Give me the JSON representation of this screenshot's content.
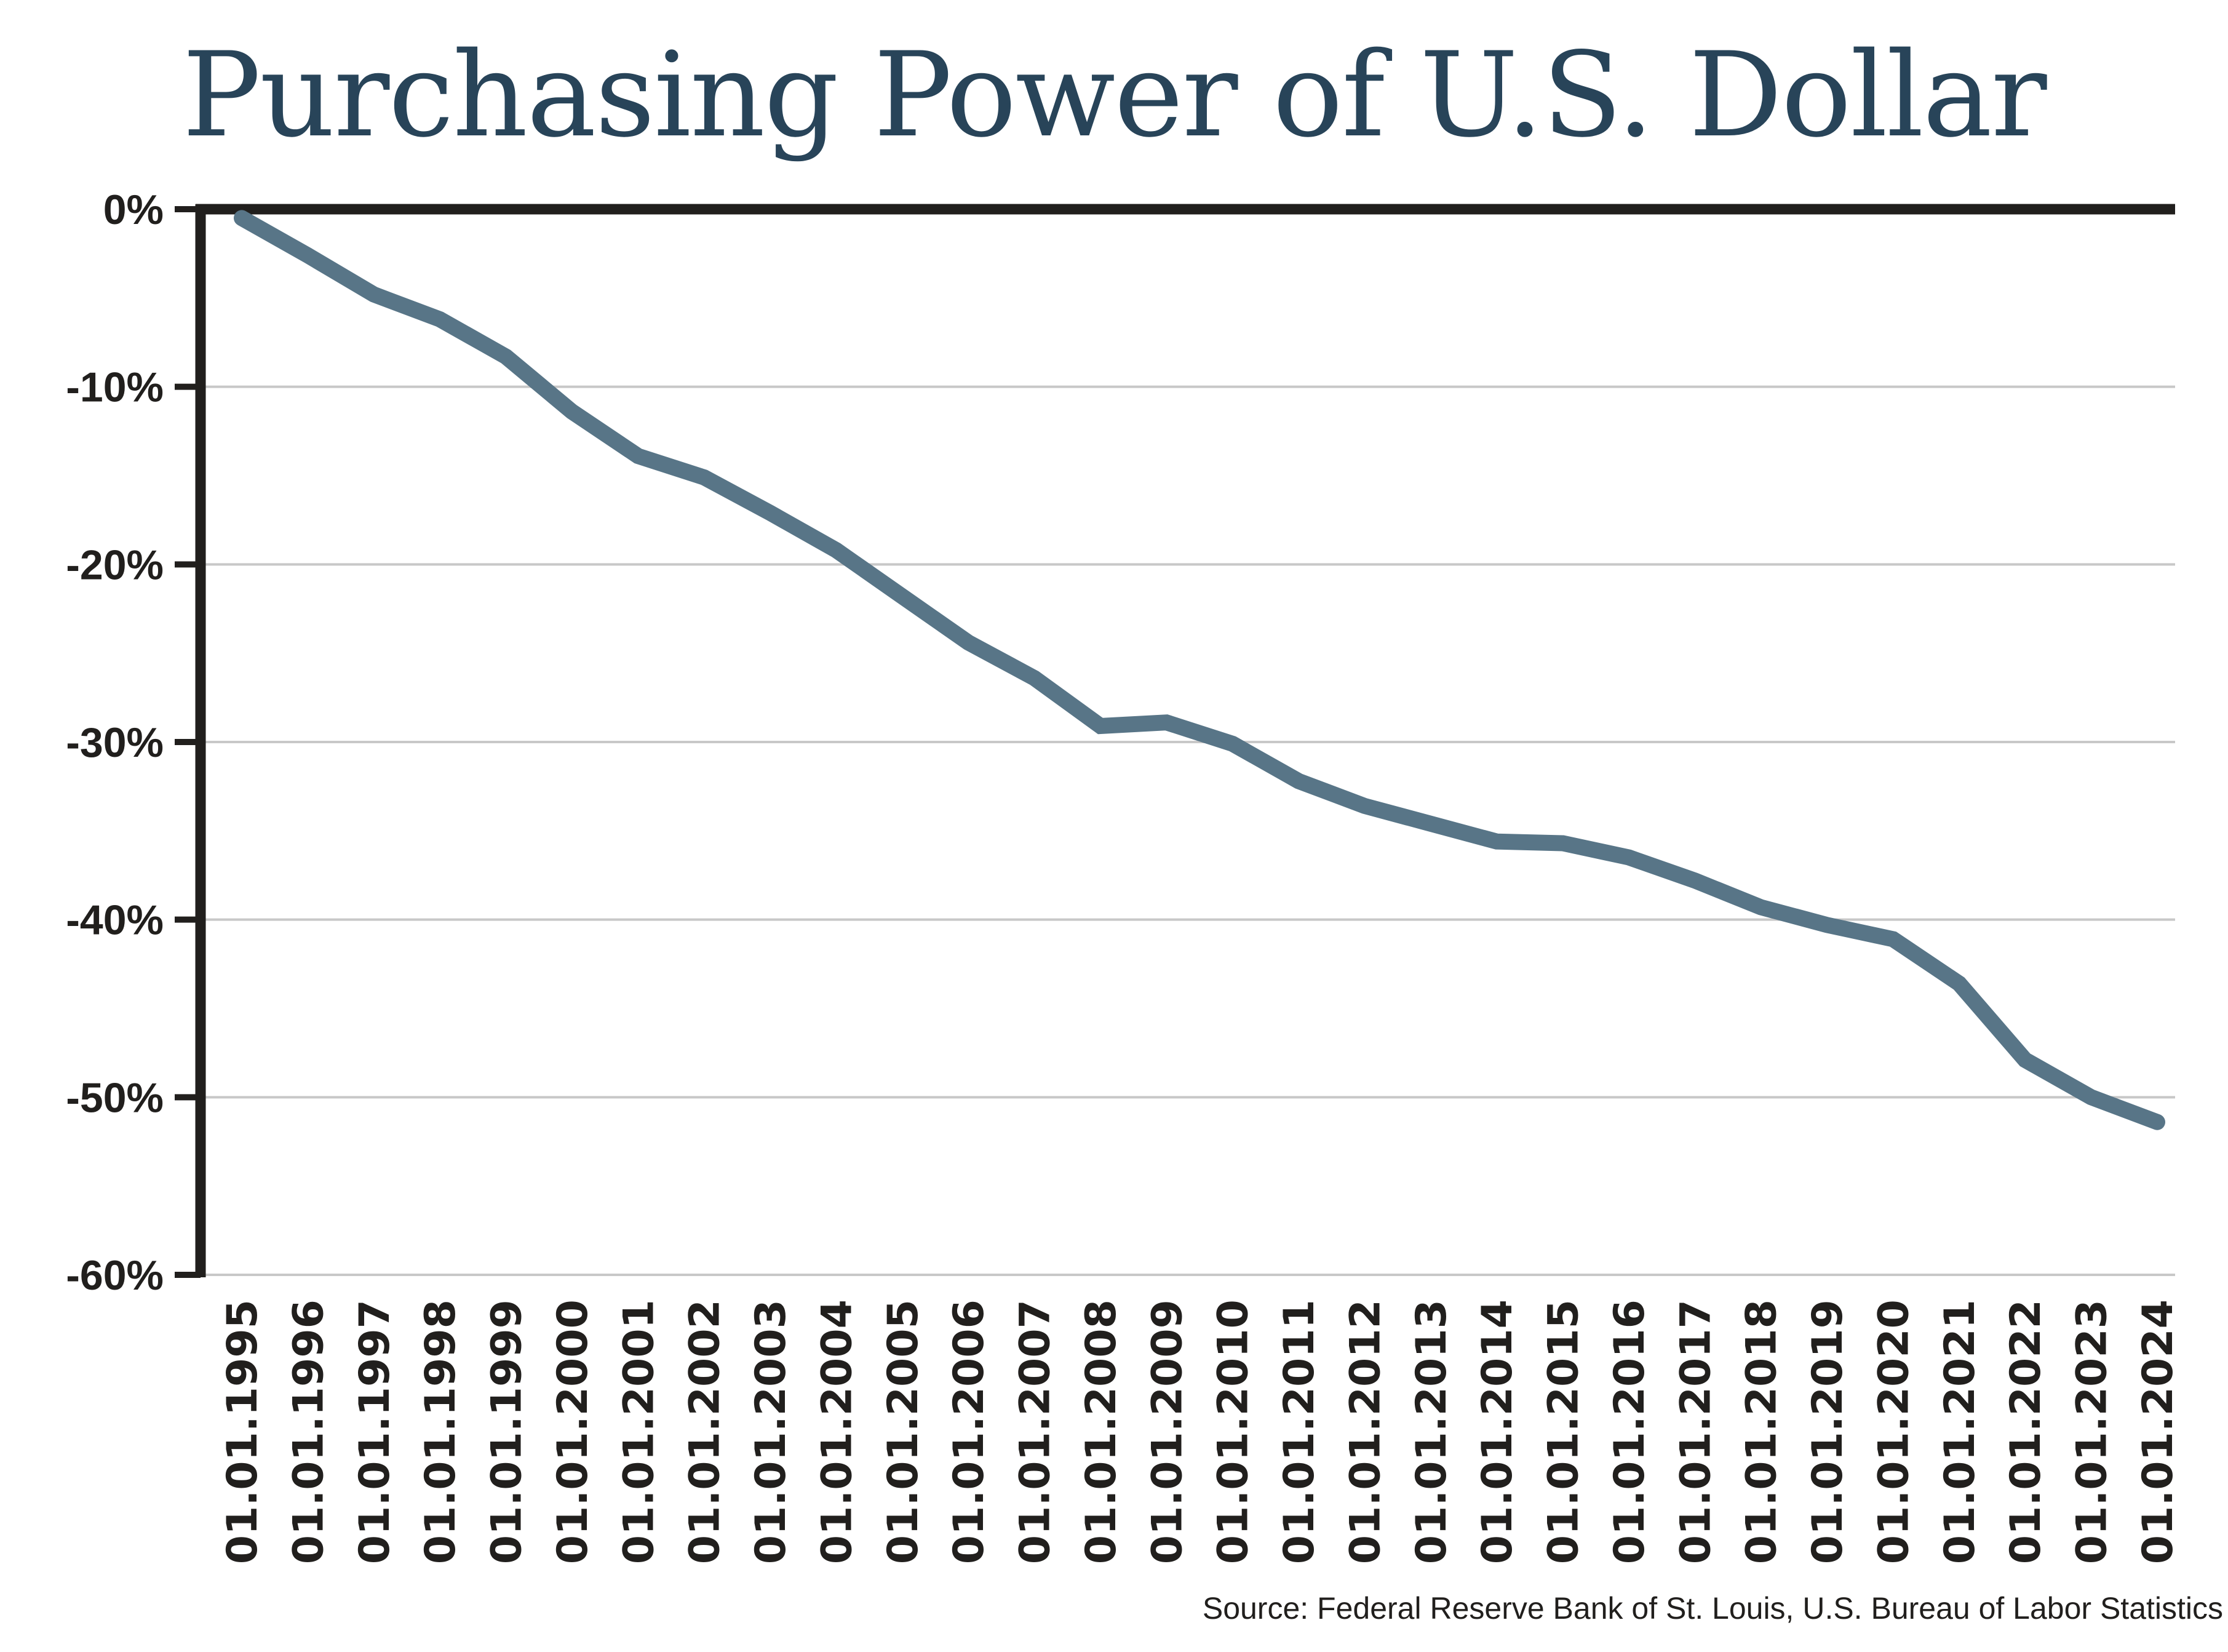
{
  "chart_data": {
    "type": "line",
    "title": "Purchasing Power of U.S. Dollar",
    "xlabel": "",
    "ylabel": "",
    "ylim": [
      -60,
      0
    ],
    "yticks": [
      0,
      -10,
      -20,
      -30,
      -40,
      -50,
      -60
    ],
    "ytick_labels": [
      "0%",
      "-10%",
      "-20%",
      "-30%",
      "-40%",
      "-50%",
      "-60%"
    ],
    "grid": true,
    "legend": "none",
    "categories": [
      "01.01.1995",
      "01.01.1996",
      "01.01.1997",
      "01.01.1998",
      "01.01.1999",
      "01.01.2000",
      "01.01.2001",
      "01.01.2002",
      "01.01.2003",
      "01.01.2004",
      "01.01.2005",
      "01.01.2006",
      "01.01.2007",
      "01.01.2008",
      "01.01.2009",
      "01.01.2010",
      "01.01.2011",
      "01.01.2012",
      "01.01.2013",
      "01.01.2014",
      "01.01.2015",
      "01.01.2016",
      "01.01.2017",
      "01.01.2018",
      "01.01.2019",
      "01.01.2020",
      "01.01.2021",
      "01.01.2022",
      "01.01.2023",
      "01.01.2024"
    ],
    "series": [
      {
        "name": "Purchasing Power of U.S. Dollar",
        "color": "#587587",
        "values": [
          -0.5,
          -2.6,
          -4.8,
          -6.2,
          -8.3,
          -11.4,
          -13.9,
          -15.1,
          -17.1,
          -19.2,
          -21.8,
          -24.4,
          -26.4,
          -29.1,
          -28.9,
          -30.1,
          -32.2,
          -33.6,
          -34.6,
          -35.6,
          -35.7,
          -36.5,
          -37.8,
          -39.3,
          -40.3,
          -41.1,
          -43.6,
          -47.9,
          -50.0,
          -51.4
        ]
      }
    ],
    "source": "Source: Federal Reserve Bank of St. Louis, U.S. Bureau of Labor Statistics"
  },
  "colors": {
    "title": "#284459",
    "line": "#587587",
    "axis": "#211f1d",
    "grid": "#c8c8c8"
  }
}
